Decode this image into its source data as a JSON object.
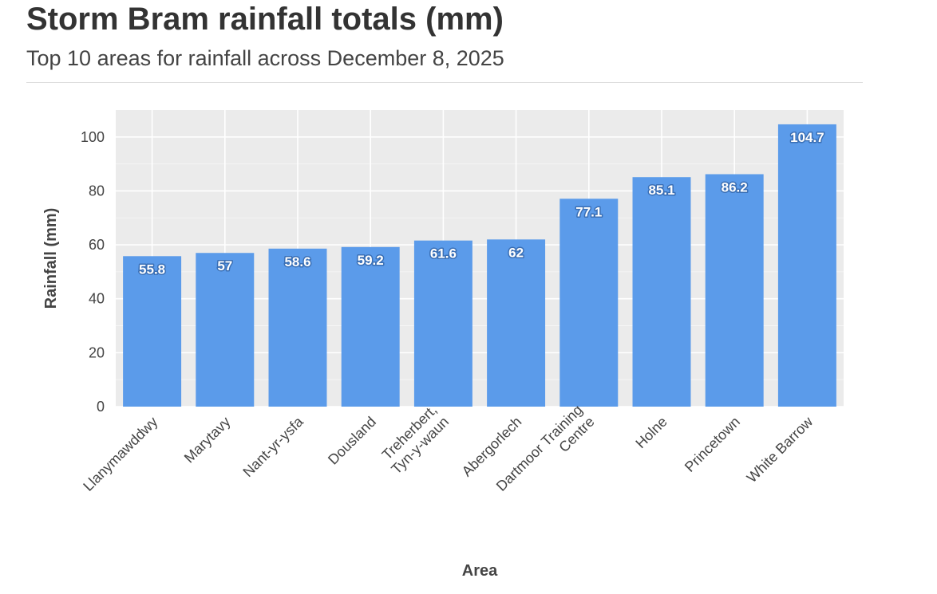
{
  "header": {
    "title": "Storm Bram rainfall totals (mm)",
    "subtitle": "Top 10 areas for rainfall across December 8, 2025"
  },
  "colors": {
    "bar": "#5b9bea",
    "plot_background": "#ebebeb",
    "gridline": "#ffffff"
  },
  "chart_data": {
    "type": "bar",
    "title": "Storm Bram rainfall totals (mm)",
    "subtitle": "Top 10 areas for rainfall across December 8, 2025",
    "xlabel": "Area",
    "ylabel": "Rainfall (mm)",
    "categories": [
      [
        "Llanymawddwy"
      ],
      [
        "Marytavy"
      ],
      [
        "Nant-yr-ysfa"
      ],
      [
        "Dousland"
      ],
      [
        "Treherbert,",
        "Tyn-y-waun"
      ],
      [
        "Abergorlech"
      ],
      [
        "Dartmoor Training",
        "Centre"
      ],
      [
        "Holne"
      ],
      [
        "Princetown"
      ],
      [
        "White Barrow"
      ]
    ],
    "values": [
      55.8,
      57,
      58.6,
      59.2,
      61.6,
      62,
      77.1,
      85.1,
      86.2,
      104.7
    ],
    "data_labels": [
      "55.8",
      "57",
      "58.6",
      "59.2",
      "61.6",
      "62",
      "77.1",
      "85.1",
      "86.2",
      "104.7"
    ],
    "ylim": [
      0,
      110
    ],
    "yticks": [
      0,
      20,
      40,
      60,
      80,
      100
    ],
    "grid": true,
    "legend": "none"
  }
}
